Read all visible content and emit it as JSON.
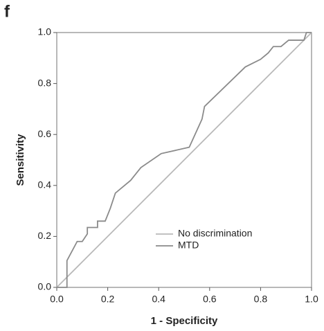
{
  "chart_data": {
    "type": "line",
    "panel_label": "f",
    "xlabel": "1 - Specificity",
    "ylabel": "Sensitivity",
    "xlim": [
      0,
      1
    ],
    "ylim": [
      0,
      1
    ],
    "xticks": [
      {
        "value": 0,
        "label": "0.0"
      },
      0.2,
      0.4,
      0.6,
      0.8,
      {
        "value": 1,
        "label": "1.0"
      }
    ],
    "yticks": [
      {
        "value": 0,
        "label": "0.0"
      },
      0.2,
      0.4,
      0.6,
      0.8,
      {
        "value": 1,
        "label": "1.0"
      }
    ],
    "legend": "lower right",
    "series": [
      {
        "name": "No discrimination",
        "color": "#b8b8b8",
        "x": [
          0,
          1
        ],
        "values": [
          0,
          1
        ]
      },
      {
        "name": "MTD",
        "color": "#8a8a8a",
        "x": [
          0,
          0.04,
          0.04,
          0.08,
          0.1,
          0.12,
          0.12,
          0.16,
          0.16,
          0.19,
          0.21,
          0.23,
          0.29,
          0.33,
          0.41,
          0.52,
          0.57,
          0.58,
          0.74,
          0.8,
          0.83,
          0.85,
          0.88,
          0.91,
          0.97,
          0.98,
          1.0
        ],
        "values": [
          0,
          0,
          0.105,
          0.18,
          0.18,
          0.21,
          0.235,
          0.235,
          0.26,
          0.26,
          0.31,
          0.37,
          0.42,
          0.47,
          0.525,
          0.55,
          0.66,
          0.71,
          0.865,
          0.895,
          0.92,
          0.945,
          0.945,
          0.97,
          0.97,
          1.0,
          1.0
        ]
      }
    ]
  }
}
